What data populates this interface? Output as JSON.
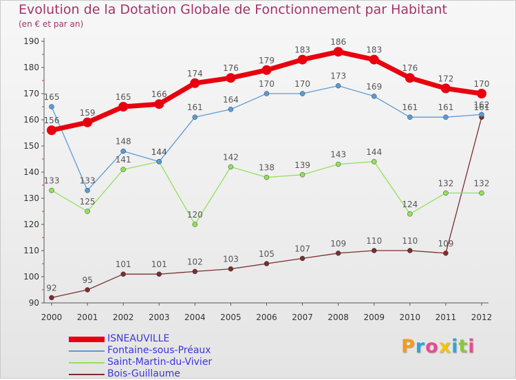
{
  "title": "Evolution de la Dotation Globale de Fonctionnement par Habitant",
  "subtitle": "(en € et par an)",
  "logo": {
    "text": "Proxiti",
    "letters": [
      {
        "ch": "P",
        "color": "#f39b1b"
      },
      {
        "ch": "r",
        "color": "#2aa6dd"
      },
      {
        "ch": "o",
        "color": "#e94b8e"
      },
      {
        "ch": "x",
        "color": "#f5c400"
      },
      {
        "ch": "i",
        "color": "#2aa6dd"
      },
      {
        "ch": "t",
        "color": "#8cc63f"
      },
      {
        "ch": "i",
        "color": "#e94b8e"
      }
    ]
  },
  "chart_data": {
    "type": "line",
    "x": [
      "2000",
      "2001",
      "2002",
      "2003",
      "2004",
      "2005",
      "2006",
      "2007",
      "2008",
      "2009",
      "2010",
      "2011",
      "2012"
    ],
    "ylim": [
      90,
      190
    ],
    "yticks": [
      90,
      100,
      110,
      120,
      130,
      140,
      150,
      160,
      170,
      180,
      190
    ],
    "grid": false,
    "legend_position": "bottom",
    "series": [
      {
        "name": "ISNEAUVILLE",
        "color": "#e8000e",
        "width": 7,
        "point": 7,
        "values": [
          156,
          159,
          165,
          166,
          174,
          176,
          179,
          183,
          186,
          183,
          176,
          172,
          170
        ]
      },
      {
        "name": "Fontaine-sous-Préaux",
        "color": "#5b9bd5",
        "width": 1.3,
        "point": 3.5,
        "values": [
          165,
          133,
          148,
          144,
          161,
          164,
          170,
          170,
          173,
          169,
          161,
          161,
          162
        ]
      },
      {
        "name": "Saint-Martin-du-Vivier",
        "color": "#92e05a",
        "width": 1.3,
        "point": 3.5,
        "values": [
          133,
          125,
          141,
          144,
          120,
          142,
          138,
          139,
          143,
          144,
          124,
          132,
          132
        ]
      },
      {
        "name": "Bois-Guillaume",
        "color": "#7a2e2e",
        "width": 1.3,
        "point": 3.5,
        "values": [
          92,
          95,
          101,
          101,
          102,
          103,
          105,
          107,
          109,
          110,
          110,
          109,
          161
        ]
      }
    ]
  }
}
